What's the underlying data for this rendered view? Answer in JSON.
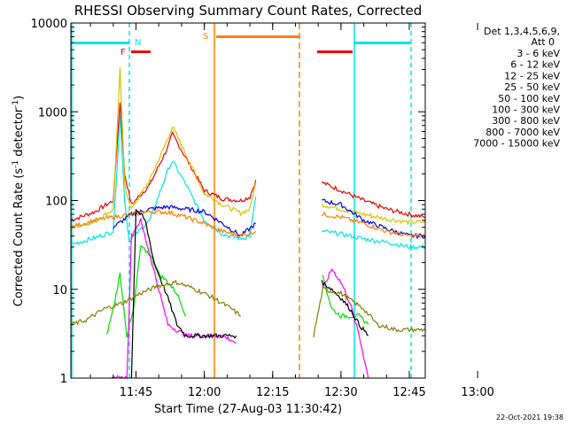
{
  "chart_data": {
    "type": "line",
    "title": "RHESSI Observing Summary Count Rates, Corrected",
    "xlabel": "Start Time (27-Aug-03 11:30:42)",
    "ylabel_main": "Corrected Count Rate (s",
    "ylabel_sup": "-1",
    "ylabel_tail": " detector",
    "ylabel_close": ")",
    "yscale": "log",
    "xlim_min": [
      30.7,
      108.5
    ],
    "ylim": [
      1,
      10000
    ],
    "x_ticks": [
      {
        "label": "11:45",
        "value": 45
      },
      {
        "label": "12:00",
        "value": 60
      },
      {
        "label": "12:15",
        "value": 75
      },
      {
        "label": "12:30",
        "value": 90
      },
      {
        "label": "12:45",
        "value": 105
      },
      {
        "label": "13:00",
        "value": 120
      }
    ],
    "y_ticks": [
      {
        "label": "1",
        "value": 1
      },
      {
        "label": "10",
        "value": 10
      },
      {
        "label": "100",
        "value": 100
      },
      {
        "label": "1000",
        "value": 1000
      },
      {
        "label": "10000",
        "value": 10000
      }
    ],
    "legend_header": [
      "Det 1,3,4,5,6,9,",
      "Att 0"
    ],
    "legend": [
      {
        "label": "3 - 6 keV",
        "color": "#000000"
      },
      {
        "label": "6 - 12 keV",
        "color": "#ff00ff"
      },
      {
        "label": "12 - 25 keV",
        "color": "#00dd00"
      },
      {
        "label": "25 - 50 keV",
        "color": "#00e5e5"
      },
      {
        "label": "50 - 100 keV",
        "color": "#d4c400"
      },
      {
        "label": "100 - 300 keV",
        "color": "#ee0000"
      },
      {
        "label": "300 - 800 keV",
        "color": "#0000ee"
      },
      {
        "label": "800 - 7000 keV",
        "color": "#ff8000"
      },
      {
        "label": "7000 - 15000 keV",
        "color": "#808000"
      }
    ],
    "markers": {
      "N": {
        "label": "N",
        "color": "#00e5e5"
      },
      "F": {
        "label": "F",
        "color": "#ee0000"
      },
      "S": {
        "label": "S",
        "color": "#ff8000"
      }
    },
    "series": [
      {
        "name": "100 - 300 keV",
        "color": "#ee0000",
        "segments": [
          [
            [
              30.7,
              60
            ],
            [
              36,
              75
            ],
            [
              40,
              100
            ],
            [
              41.5,
              1300
            ],
            [
              42.5,
              200
            ],
            [
              44,
              90
            ],
            [
              48,
              150
            ],
            [
              52,
              400
            ],
            [
              53,
              560
            ],
            [
              56,
              300
            ],
            [
              60,
              130
            ],
            [
              64,
              105
            ],
            [
              68,
              100
            ],
            [
              70,
              110
            ],
            [
              71.3,
              170
            ]
          ],
          [
            [
              85.8,
              160
            ],
            [
              90,
              130
            ],
            [
              95,
              100
            ],
            [
              100,
              80
            ],
            [
              105,
              70
            ],
            [
              108.5,
              65
            ]
          ]
        ]
      },
      {
        "name": "50 - 100 keV",
        "color": "#d4c400",
        "segments": [
          [
            [
              30.7,
              50
            ],
            [
              36,
              58
            ],
            [
              40,
              80
            ],
            [
              41.5,
              3000
            ],
            [
              42.5,
              150
            ],
            [
              44,
              80
            ],
            [
              48,
              170
            ],
            [
              52,
              500
            ],
            [
              53,
              680
            ],
            [
              56,
              330
            ],
            [
              60,
              120
            ],
            [
              64,
              90
            ],
            [
              68,
              72
            ],
            [
              70,
              80
            ],
            [
              71.3,
              160
            ]
          ],
          [
            [
              85.8,
              90
            ],
            [
              90,
              80
            ],
            [
              95,
              70
            ],
            [
              100,
              62
            ],
            [
              105,
              57
            ],
            [
              108.5,
              57
            ]
          ]
        ]
      },
      {
        "name": "25 - 50 keV",
        "color": "#00e5e5",
        "segments": [
          [
            [
              30.7,
              32
            ],
            [
              36,
              38
            ],
            [
              40,
              45
            ],
            [
              41.5,
              900
            ],
            [
              42.5,
              100
            ],
            [
              43.5,
              35
            ],
            [
              48,
              60
            ],
            [
              52,
              220
            ],
            [
              53,
              280
            ],
            [
              56,
              150
            ],
            [
              60,
              60
            ],
            [
              64,
              42
            ],
            [
              68,
              37
            ],
            [
              70,
              40
            ],
            [
              71.3,
              110
            ]
          ],
          [
            [
              85.8,
              45
            ],
            [
              90,
              42
            ],
            [
              95,
              37
            ],
            [
              100,
              34
            ],
            [
              105,
              30
            ],
            [
              108.5,
              30
            ]
          ]
        ]
      },
      {
        "name": "300 - 800 keV",
        "color": "#0000ee",
        "segments": [
          [
            [
              40,
              50
            ],
            [
              44,
              70
            ],
            [
              48,
              80
            ],
            [
              52,
              85
            ],
            [
              56,
              80
            ],
            [
              60,
              75
            ],
            [
              64,
              55
            ],
            [
              68,
              40
            ],
            [
              71.3,
              55
            ]
          ],
          [
            [
              85.8,
              100
            ],
            [
              90,
              90
            ],
            [
              95,
              60
            ],
            [
              100,
              48
            ],
            [
              105,
              40
            ],
            [
              108.5,
              40
            ]
          ]
        ]
      },
      {
        "name": "800 - 7000 keV",
        "color": "#ff8000",
        "segments": [
          [
            [
              30.7,
              50
            ],
            [
              36,
              60
            ],
            [
              40,
              65
            ],
            [
              44,
              70
            ],
            [
              48,
              75
            ],
            [
              52,
              74
            ],
            [
              56,
              65
            ],
            [
              60,
              55
            ],
            [
              64,
              45
            ],
            [
              68,
              40
            ],
            [
              71.3,
              45
            ]
          ],
          [
            [
              85.8,
              70
            ],
            [
              90,
              65
            ],
            [
              95,
              55
            ],
            [
              100,
              45
            ],
            [
              105,
              40
            ],
            [
              108.5,
              40
            ]
          ]
        ]
      },
      {
        "name": "12 - 25 keV",
        "color": "#00dd00",
        "segments": [
          [
            [
              38.5,
              3
            ],
            [
              40,
              6
            ],
            [
              41.5,
              15
            ],
            [
              43,
              3
            ],
            [
              44.5,
              6
            ],
            [
              46,
              30
            ],
            [
              48,
              25
            ],
            [
              50,
              15
            ],
            [
              52,
              12
            ],
            [
              54,
              9
            ],
            [
              56,
              5
            ]
          ],
          [
            [
              85.8,
              15
            ],
            [
              88,
              6
            ],
            [
              90,
              5
            ],
            [
              92,
              5
            ],
            [
              94,
              5
            ],
            [
              96,
              4
            ]
          ]
        ]
      },
      {
        "name": "6 - 12 keV",
        "color": "#ff00ff",
        "segments": [
          [
            [
              39.5,
              1
            ],
            [
              43,
              1
            ],
            [
              44,
              40
            ],
            [
              46,
              60
            ],
            [
              48,
              25
            ],
            [
              50,
              10
            ],
            [
              52,
              4
            ],
            [
              56,
              3
            ],
            [
              60,
              3
            ],
            [
              64,
              3
            ],
            [
              67,
              2.5
            ]
          ],
          [
            [
              86,
              10
            ],
            [
              88,
              17
            ],
            [
              90,
              12
            ],
            [
              92,
              7
            ],
            [
              94,
              3
            ],
            [
              96,
              1
            ]
          ]
        ]
      },
      {
        "name": "3 - 6 keV",
        "color": "#000000",
        "segments": [
          [
            [
              44,
              1
            ],
            [
              45,
              80
            ],
            [
              47,
              60
            ],
            [
              49,
              20
            ],
            [
              52,
              8
            ],
            [
              54,
              4
            ],
            [
              56,
              3
            ],
            [
              60,
              3
            ],
            [
              64,
              3
            ],
            [
              67,
              3
            ]
          ],
          [
            [
              85.8,
              12
            ],
            [
              88,
              10
            ],
            [
              90,
              8
            ],
            [
              92,
              6
            ],
            [
              94,
              4
            ],
            [
              96,
              3
            ]
          ]
        ]
      },
      {
        "name": "7000 - 15000 keV",
        "color": "#808000",
        "segments": [
          [
            [
              30.7,
              4
            ],
            [
              34,
              4.5
            ],
            [
              38,
              6
            ],
            [
              42,
              7
            ],
            [
              46,
              9
            ],
            [
              50,
              11
            ],
            [
              54,
              12
            ],
            [
              58,
              10
            ],
            [
              62,
              8
            ],
            [
              66,
              6
            ],
            [
              68,
              5
            ]
          ],
          [
            [
              84,
              3
            ],
            [
              86,
              10
            ],
            [
              90,
              9
            ],
            [
              95,
              6
            ],
            [
              98,
              4
            ],
            [
              102,
              3.5
            ],
            [
              108.5,
              3.5
            ]
          ]
        ]
      }
    ]
  },
  "footer": {
    "date": "22-Oct-2021 19:38"
  }
}
